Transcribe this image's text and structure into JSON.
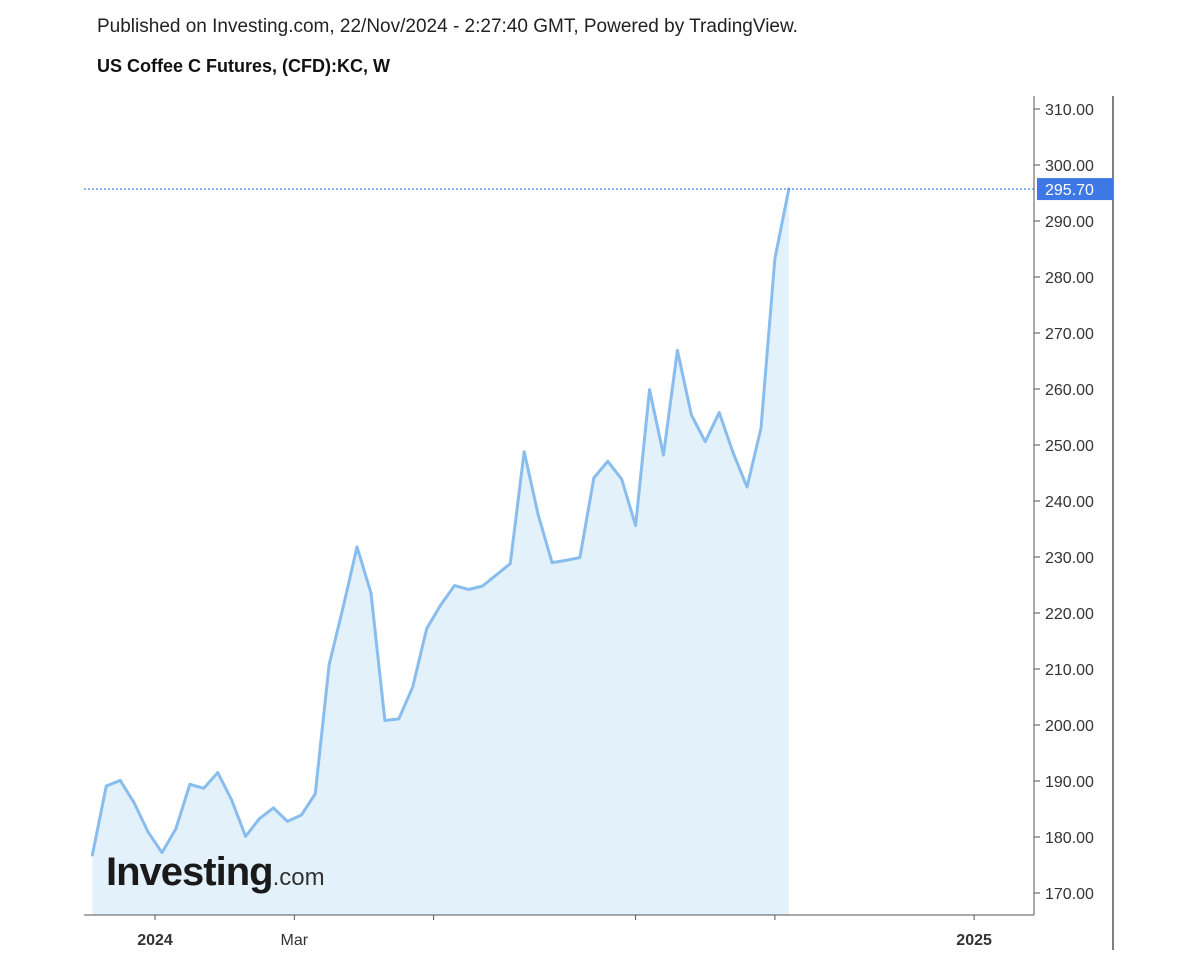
{
  "header": {
    "published": "Published on Investing.com, 22/Nov/2024 - 2:27:40 GMT, Powered by TradingView.",
    "title": "US Coffee C Futures, (CFD):KC, W"
  },
  "logo": {
    "main": "Investing",
    "tld": ".com"
  },
  "colors": {
    "line": "#88bdee",
    "fill": "#e3f1fb",
    "last_price_box": "#3d78e6",
    "last_price_line": "#3d78e6",
    "axis": "#555555"
  },
  "chart_data": {
    "type": "area",
    "title": "US Coffee C Futures, (CFD):KC, W",
    "xlabel": "",
    "ylabel": "",
    "ylim": [
      164,
      311
    ],
    "y_ticks": [
      310,
      300,
      290,
      280,
      270,
      260,
      250,
      240,
      230,
      220,
      210,
      200,
      190,
      180,
      170
    ],
    "x_tick_labels": [
      {
        "label": "2024",
        "bold": true,
        "week": 4.5
      },
      {
        "label": "Mar",
        "bold": false,
        "week": 14.5
      },
      {
        "label": "",
        "bold": false,
        "week": 24.5
      },
      {
        "label": "",
        "bold": false,
        "week": 39
      },
      {
        "label": "",
        "bold": false,
        "week": 49
      },
      {
        "label": "2025",
        "bold": true,
        "week": 63.3
      }
    ],
    "x_range_weeks": [
      -0.6,
      67.6
    ],
    "last_price": 295.7,
    "last_price_label": "295.70",
    "series": [
      {
        "values": [
          176.8,
          189.1,
          190.1,
          186.1,
          180.9,
          177.2,
          181.5,
          189.4,
          188.7,
          191.5,
          186.6,
          180.1,
          183.3,
          185.2,
          182.8,
          183.9,
          187.7,
          210.8,
          221.0,
          231.8,
          223.6,
          200.8,
          201.1,
          206.8,
          217.2,
          221.4,
          224.9,
          224.2,
          224.8,
          226.8,
          228.8,
          248.8,
          237.6,
          229.0,
          229.4,
          229.9,
          244.1,
          247.1,
          243.9,
          235.6,
          259.9,
          248.2,
          266.9,
          255.4,
          250.6,
          255.8,
          248.6,
          242.5,
          253.0,
          283.3,
          295.7
        ]
      }
    ]
  }
}
